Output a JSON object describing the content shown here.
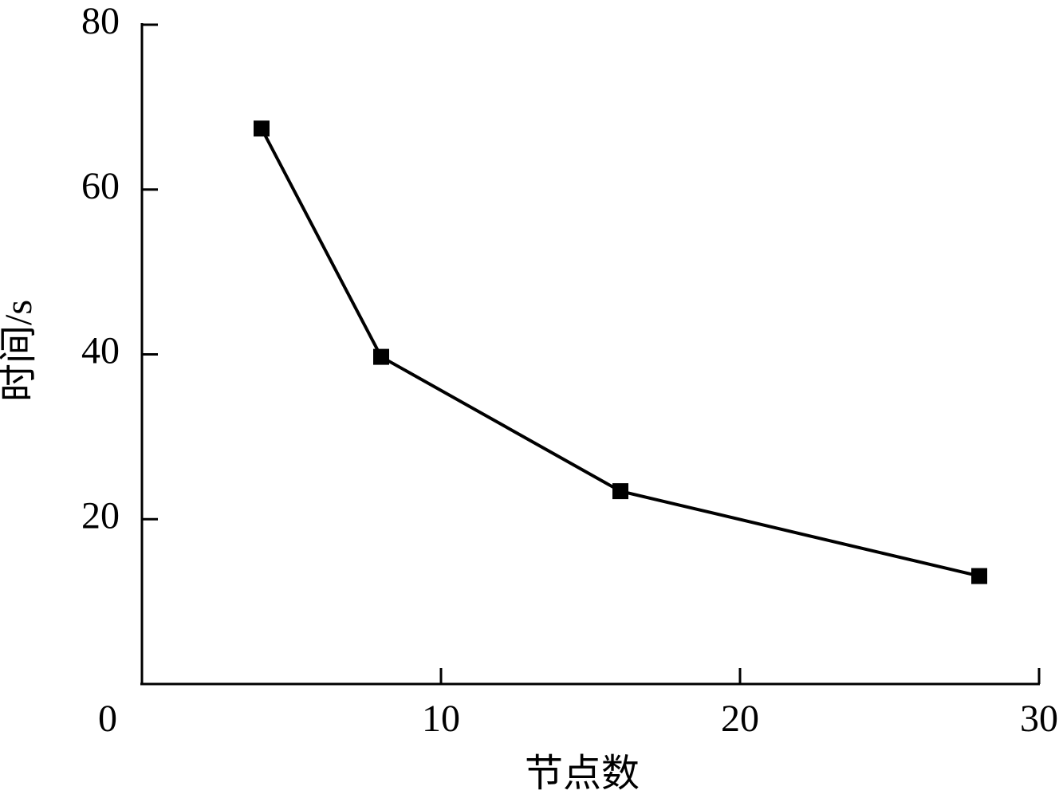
{
  "chart_data": {
    "type": "line",
    "x_label": "节点数",
    "y_label": "时间/s",
    "series": [
      {
        "color": "#000000",
        "x": [
          4,
          8,
          16,
          28
        ],
        "values": [
          67.4,
          39.7,
          23.4,
          13.1
        ]
      }
    ],
    "xlim": [
      0,
      30
    ],
    "xticks": [
      0,
      10,
      20,
      30
    ],
    "ylim": [
      0,
      80
    ],
    "yticks": [
      20,
      40,
      60,
      80
    ],
    "grid": false,
    "marker": "square"
  }
}
